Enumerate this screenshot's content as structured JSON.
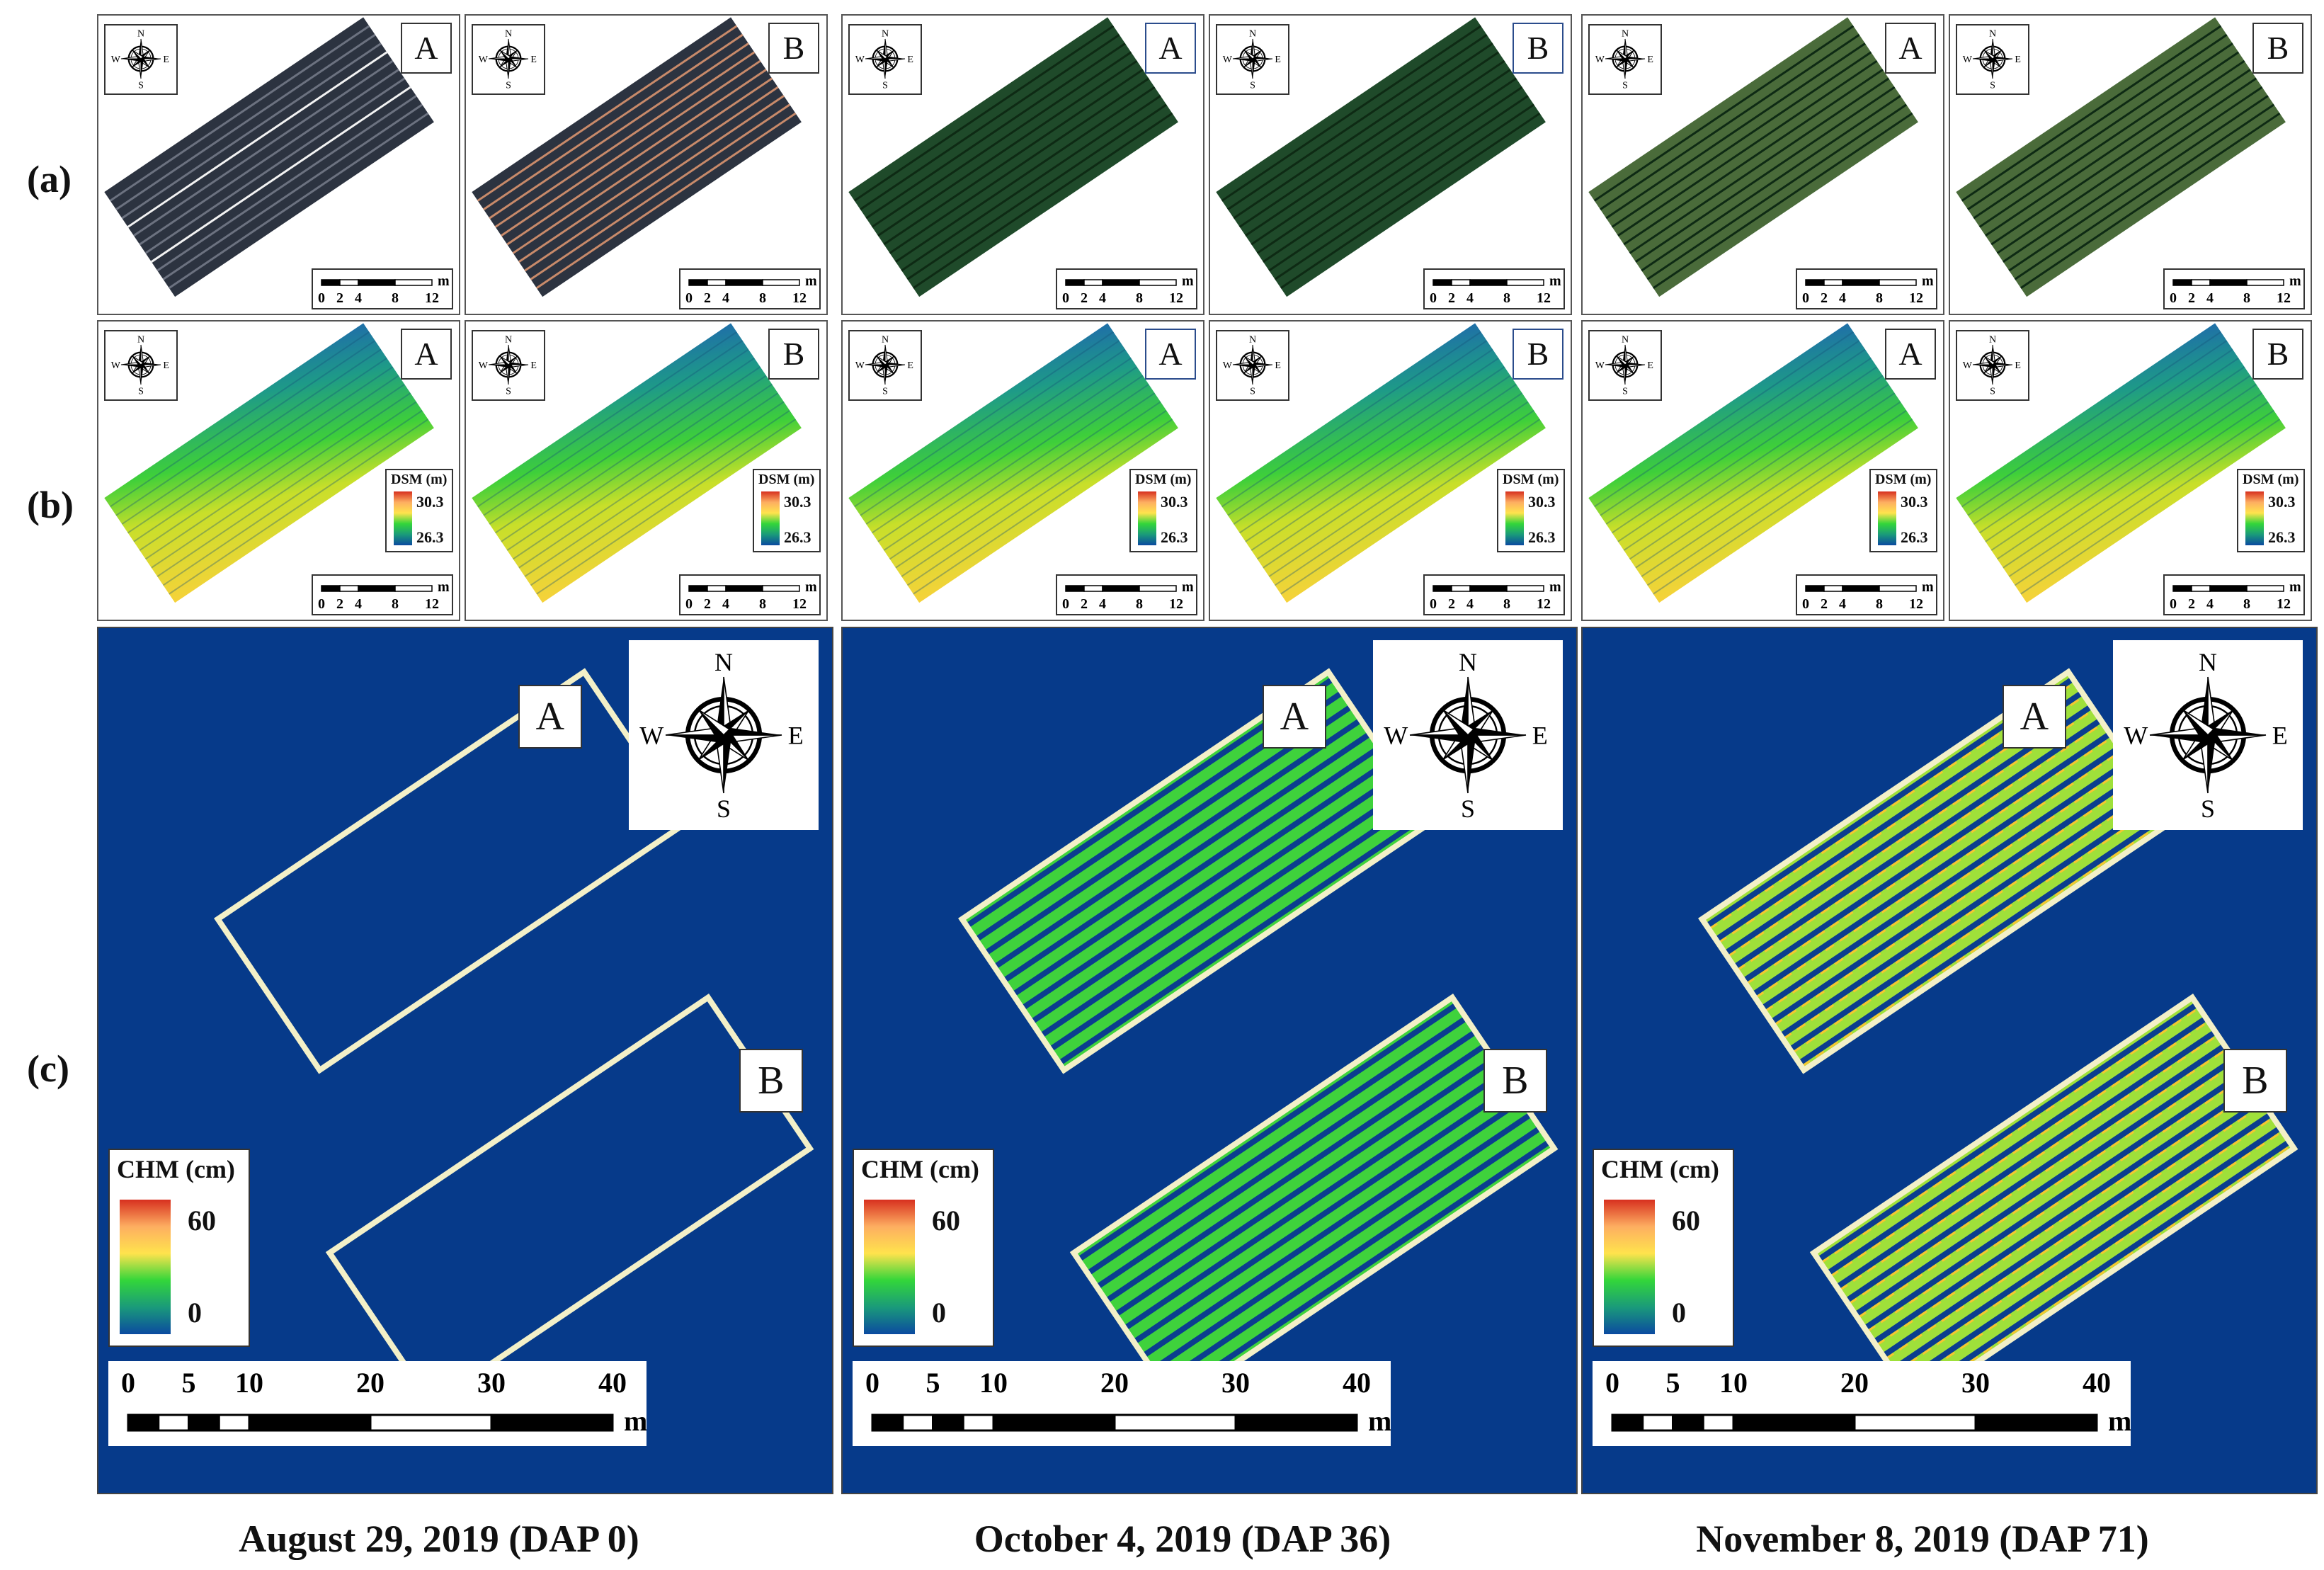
{
  "row_labels": {
    "a": "(a)",
    "b": "(b)",
    "c": "(c)"
  },
  "dates": [
    "August 29, 2019 (DAP 0)",
    "October 4, 2019 (DAP 36)",
    "November 8, 2019 (DAP 71)"
  ],
  "plot_labels": {
    "a": "A",
    "b": "B"
  },
  "compass": {
    "n": "N",
    "s": "S",
    "e": "E",
    "w": "W"
  },
  "small_scale": {
    "ticks": [
      "0",
      "2",
      "4",
      "8",
      "12"
    ],
    "unit": "m"
  },
  "big_scale": {
    "ticks": [
      "0",
      "5",
      "10",
      "20",
      "30",
      "40"
    ],
    "unit": "m"
  },
  "dsm_legend": {
    "title": "DSM (m)",
    "max": "30.3",
    "min": "26.3"
  },
  "chm_legend": {
    "title": "CHM (cm)",
    "max": "60",
    "min": "0"
  },
  "colors": {
    "chm_background": "#063a8a",
    "plot_outline": "#f3f0c8",
    "ramp": [
      "#d7301f",
      "#fdae61",
      "#ffe34d",
      "#33d63a",
      "#1a9a7a",
      "#0b4aa0"
    ]
  }
}
